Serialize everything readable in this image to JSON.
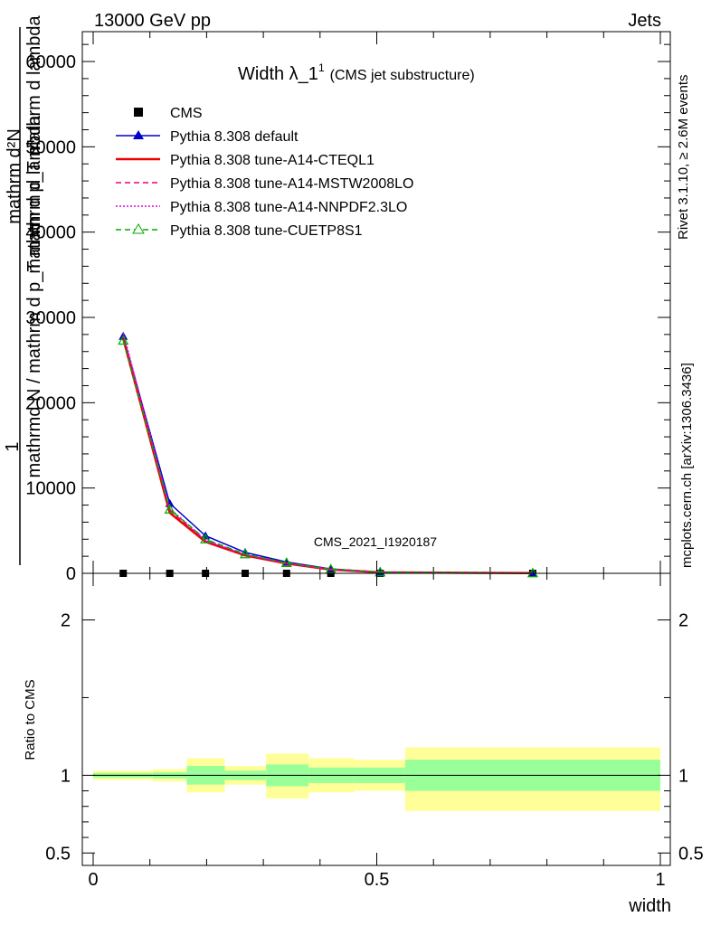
{
  "header": {
    "left": "13000 GeV pp",
    "right": "Jets"
  },
  "side_labels": {
    "rivet": "Rivet 3.1.10, ≥ 2.6M events",
    "mcplots": "mcplots.cern.ch [arXiv:1306.3436]"
  },
  "watermark": "CMS_2021_I1920187",
  "chart_data": [
    {
      "type": "line",
      "title": "Width λ_1",
      "title_sup": "1",
      "subtitle": "(CMS jet substructure)",
      "ylabel_num": "1",
      "ylabel_den": "mathrmd N / mathrm d p_T mathrm d lambda",
      "ylabel_line1": "mathrm d²N",
      "ylabel_line2": "mathrm d p_T mathrm d lambda",
      "xlim": [
        0,
        1
      ],
      "ylim": [
        0,
        63500
      ],
      "yticks": [
        0,
        10000,
        20000,
        30000,
        40000,
        50000,
        60000
      ],
      "ytick_labels": [
        "0",
        "10000",
        "20000",
        "30000",
        "40000",
        "50000",
        "60000"
      ],
      "x": [
        0.053,
        0.135,
        0.198,
        0.268,
        0.341,
        0.419,
        0.506,
        0.775
      ],
      "series": [
        {
          "name": "CMS",
          "color": "#000000",
          "marker": "square",
          "values": [
            0,
            0,
            0,
            0,
            0,
            0,
            0,
            0
          ]
        },
        {
          "name": "Pythia 8.308 default",
          "color": "#0000cc",
          "marker": "triangle",
          "dash": "",
          "values": [
            27800,
            8200,
            4400,
            2450,
            1330,
            520,
            150,
            25
          ]
        },
        {
          "name": "Pythia 8.308 tune-A14-CTEQL1",
          "color": "#ee0000",
          "marker": "none",
          "dash": "",
          "values": [
            27500,
            7100,
            3700,
            2100,
            1150,
            440,
            120,
            20
          ]
        },
        {
          "name": "Pythia 8.308 tune-A14-MSTW2008LO",
          "color": "#ee0077",
          "marker": "none",
          "dash": "6,4",
          "values": [
            27900,
            7400,
            3800,
            2150,
            1180,
            460,
            125,
            22
          ]
        },
        {
          "name": "Pythia 8.308 tune-A14-NNPDF2.3LO",
          "color": "#dd00dd",
          "marker": "none",
          "dash": "2,2",
          "values": [
            28200,
            7600,
            3900,
            2200,
            1200,
            470,
            130,
            22
          ]
        },
        {
          "name": "Pythia 8.308 tune-CUETP8S1",
          "color": "#00aa00",
          "marker": "open-triangle",
          "dash": "6,4",
          "values": [
            27300,
            7500,
            4000,
            2250,
            1230,
            480,
            135,
            24
          ]
        }
      ]
    },
    {
      "type": "area",
      "ylabel": "Ratio to CMS",
      "xlabel": "width",
      "xlim": [
        0,
        1
      ],
      "ylim": [
        0.42,
        2.3
      ],
      "yticks": [
        0.5,
        1,
        2
      ],
      "ytick_labels": [
        "0.5",
        "1",
        "2"
      ],
      "xticks": [
        0,
        0.5,
        1
      ],
      "xtick_labels": [
        "0",
        "0.5",
        "1"
      ],
      "bins": [
        {
          "lo": 0.0,
          "hi": 0.105,
          "stat_lo": 0.985,
          "stat_hi": 1.015,
          "tot_lo": 0.97,
          "tot_hi": 1.03
        },
        {
          "lo": 0.105,
          "hi": 0.165,
          "stat_lo": 0.98,
          "stat_hi": 1.02,
          "tot_lo": 0.96,
          "tot_hi": 1.04
        },
        {
          "lo": 0.165,
          "hi": 0.232,
          "stat_lo": 0.94,
          "stat_hi": 1.06,
          "tot_lo": 0.89,
          "tot_hi": 1.11
        },
        {
          "lo": 0.232,
          "hi": 0.305,
          "stat_lo": 0.97,
          "stat_hi": 1.03,
          "tot_lo": 0.94,
          "tot_hi": 1.06
        },
        {
          "lo": 0.305,
          "hi": 0.38,
          "stat_lo": 0.93,
          "stat_hi": 1.07,
          "tot_lo": 0.85,
          "tot_hi": 1.14
        },
        {
          "lo": 0.38,
          "hi": 0.46,
          "stat_lo": 0.95,
          "stat_hi": 1.05,
          "tot_lo": 0.89,
          "tot_hi": 1.11
        },
        {
          "lo": 0.46,
          "hi": 0.55,
          "stat_lo": 0.95,
          "stat_hi": 1.05,
          "tot_lo": 0.9,
          "tot_hi": 1.1
        },
        {
          "lo": 0.55,
          "hi": 1.0,
          "stat_lo": 0.9,
          "stat_hi": 1.1,
          "tot_lo": 0.77,
          "tot_hi": 1.18
        }
      ],
      "colors": {
        "stat": "#99ff99",
        "total": "#ffff99"
      }
    }
  ]
}
